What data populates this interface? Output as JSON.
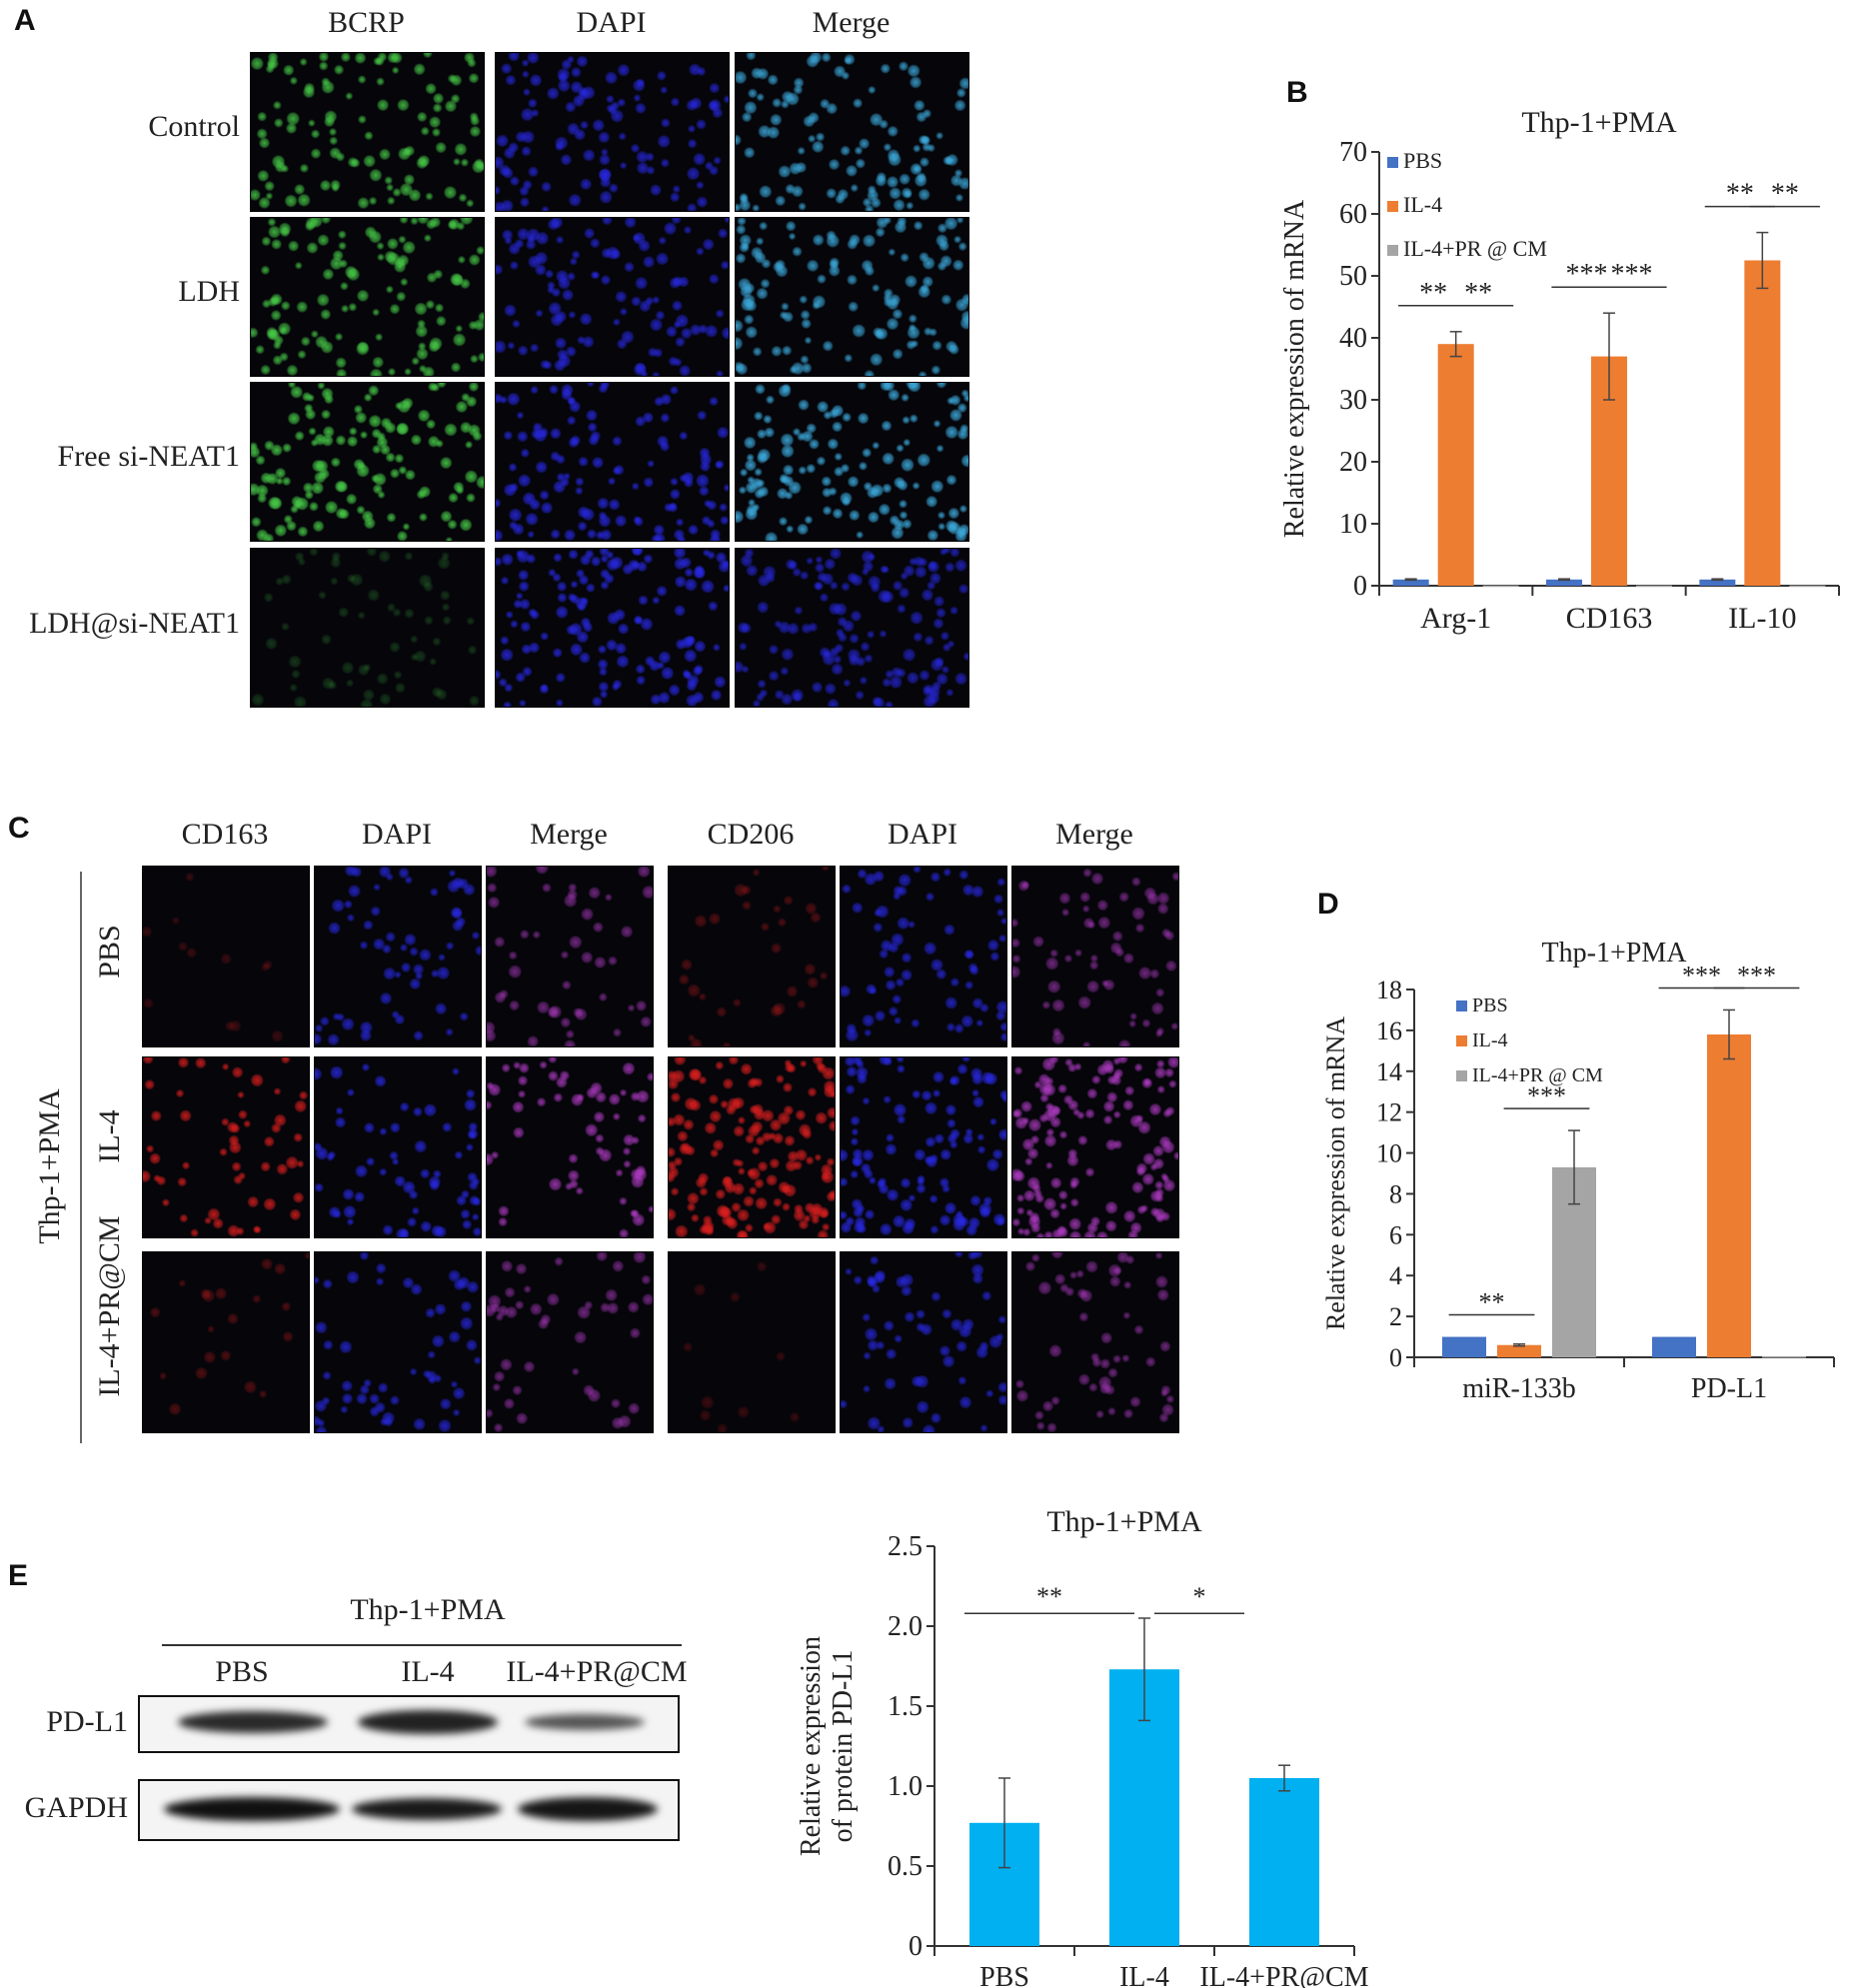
{
  "panels": {
    "A": {
      "label": "A",
      "columns": [
        "BCRP",
        "DAPI",
        "Merge"
      ],
      "rows": [
        "Control",
        "LDH",
        "Free si-NEAT1",
        "LDH@si-NEAT1"
      ]
    },
    "B": {
      "label": "B"
    },
    "C": {
      "label": "C",
      "columns_left": [
        "CD163",
        "DAPI",
        "Merge"
      ],
      "columns_right": [
        "CD206",
        "DAPI",
        "Merge"
      ],
      "rows": [
        "PBS",
        "IL-4",
        "IL-4+PR@CM"
      ],
      "group_label": "Thp-1+PMA"
    },
    "D": {
      "label": "D"
    },
    "E": {
      "label": "E",
      "blot_title": "Thp-1+PMA",
      "blot_columns": [
        "PBS",
        "IL-4",
        "IL-4+PR@CM"
      ],
      "blot_rows": [
        "PD-L1",
        "GAPDH"
      ]
    }
  },
  "colors": {
    "pbs": "#4472c4",
    "il4": "#ed7d31",
    "il4pr": "#a5a5a5",
    "bar_e": "#00b0f0",
    "fluor_green": "#3fbf3f",
    "fluor_blue": "#2a2ae0",
    "fluor_red": "#e02020"
  },
  "chart_data": [
    {
      "id": "B",
      "type": "bar",
      "title": "Thp-1+PMA",
      "xlabel": "",
      "ylabel": "Relative expression of mRNA",
      "categories": [
        "Arg-1",
        "CD163",
        "IL-10"
      ],
      "series": [
        {
          "name": "PBS",
          "values": [
            1,
            1,
            1
          ],
          "errors": [
            0.1,
            0.1,
            0.1
          ]
        },
        {
          "name": "IL-4",
          "values": [
            39,
            37,
            52.5
          ],
          "errors": [
            2,
            7,
            4.5
          ]
        },
        {
          "name": "IL-4+PR @ CM",
          "values": [
            0.05,
            0.05,
            0.05
          ],
          "errors": [
            0,
            0,
            0
          ]
        }
      ],
      "ylim": [
        0,
        70
      ],
      "yticks": [
        "0",
        "10",
        "20",
        "30",
        "40",
        "50",
        "60",
        "70"
      ],
      "legend": "top-left",
      "significance": [
        {
          "category": "Arg-1",
          "pair": "PBS-IL-4",
          "text": "**"
        },
        {
          "category": "Arg-1",
          "pair": "IL-4-IL-4+PR",
          "text": "**"
        },
        {
          "category": "CD163",
          "pair": "PBS-IL-4",
          "text": "***"
        },
        {
          "category": "CD163",
          "pair": "IL-4-IL-4+PR",
          "text": "***"
        },
        {
          "category": "IL-10",
          "pair": "PBS-IL-4",
          "text": "**"
        },
        {
          "category": "IL-10",
          "pair": "IL-4-IL-4+PR",
          "text": "**"
        }
      ]
    },
    {
      "id": "D",
      "type": "bar",
      "title": "Thp-1+PMA",
      "xlabel": "",
      "ylabel": "Relative expression of mRNA",
      "categories": [
        "miR-133b",
        "PD-L1"
      ],
      "series": [
        {
          "name": "PBS",
          "values": [
            1,
            1
          ],
          "errors": [
            0,
            0
          ]
        },
        {
          "name": "IL-4",
          "values": [
            0.6,
            15.8
          ],
          "errors": [
            0.05,
            1.2
          ]
        },
        {
          "name": "IL-4+PR @ CM",
          "values": [
            9.3,
            0.05
          ],
          "errors": [
            1.8,
            0
          ]
        }
      ],
      "ylim": [
        0,
        18
      ],
      "yticks": [
        "0",
        "2",
        "4",
        "6",
        "8",
        "10",
        "12",
        "14",
        "16",
        "18"
      ],
      "legend": "top-left",
      "significance": [
        {
          "category": "miR-133b",
          "pair": "PBS-IL-4",
          "text": "**"
        },
        {
          "category": "miR-133b",
          "pair": "IL-4-IL-4+PR",
          "text": "***"
        },
        {
          "category": "PD-L1",
          "pair": "PBS-IL-4",
          "text": "***"
        },
        {
          "category": "PD-L1",
          "pair": "IL-4-IL-4+PR",
          "text": "***"
        }
      ]
    },
    {
      "id": "E",
      "type": "bar",
      "title": "Thp-1+PMA",
      "xlabel": "",
      "ylabel": "Relative expression of protein PD-L1",
      "ylabel_lines": [
        "Relative expression",
        "of protein PD-L1"
      ],
      "categories": [
        "PBS",
        "IL-4",
        "IL-4+PR@CM"
      ],
      "series": [
        {
          "name": "",
          "values": [
            0.77,
            1.73,
            1.05
          ],
          "errors": [
            0.28,
            0.32,
            0.08
          ]
        }
      ],
      "ylim": [
        0,
        2.5
      ],
      "yticks": [
        "0",
        "0.5",
        "1.0",
        "1.5",
        "2.0",
        "2.5"
      ],
      "significance": [
        {
          "pair": "PBS-IL-4",
          "text": "**"
        },
        {
          "pair": "IL-4-IL-4+PR@CM",
          "text": "*"
        }
      ]
    }
  ]
}
